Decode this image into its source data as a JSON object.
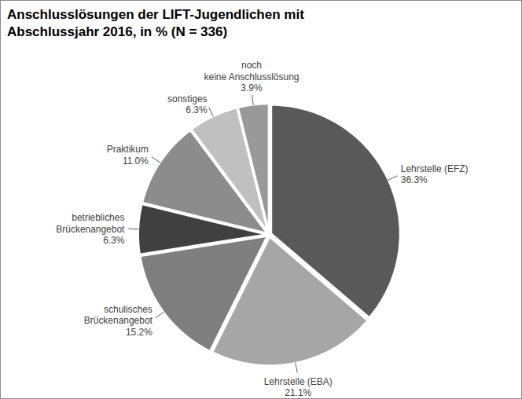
{
  "chart_data": {
    "type": "pie",
    "title": "Anschlusslösungen der LIFT-Jugendlichen mit Abschlussjahr 2016, in % (N = 336)",
    "categories": [
      "Lehrstelle (EFZ)",
      "Lehrstelle (EBA)",
      "schulisches Brückenangebot",
      "betriebliches Brückenangebot",
      "Praktikum",
      "sonstiges",
      "noch keine Anschlusslösung"
    ],
    "values": [
      36.3,
      21.1,
      15.2,
      6.3,
      11.0,
      6.3,
      3.9
    ],
    "value_labels": [
      "36.3%",
      "21.1%",
      "15.2%",
      "6.3%",
      "11.0%",
      "6.3%",
      "3.9%"
    ],
    "colors": [
      "#595959",
      "#a6a6a6",
      "#7f7f7f",
      "#404040",
      "#8c8c8c",
      "#c0c0c0",
      "#999999"
    ],
    "data_labels": true,
    "tick_labels": false
  }
}
